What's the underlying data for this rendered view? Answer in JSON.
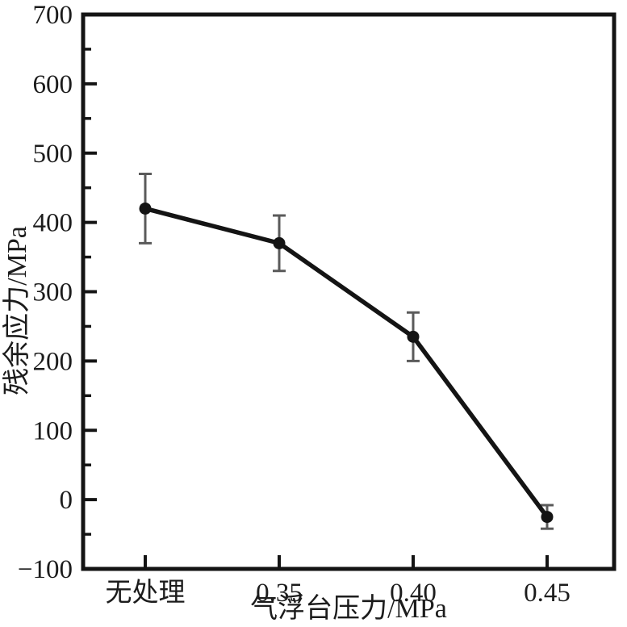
{
  "figure": {
    "background_color": "#ffffff",
    "axis_color": "#141414",
    "text_color": "#1c1c1c"
  },
  "chart_data": {
    "type": "line",
    "title": "",
    "xlabel": "气浮台压力/MPa",
    "ylabel": "残余应力/MPa",
    "categories": [
      "无处理",
      "0.35",
      "0.40",
      "0.45"
    ],
    "series": [
      {
        "name": "残余应力",
        "values": [
          420,
          370,
          235,
          -25
        ],
        "errors": [
          50,
          40,
          35,
          17
        ],
        "line_color": "#141414",
        "marker": "filled-circle",
        "marker_color": "#141414",
        "error_bar_color": "#5a5a5a"
      }
    ],
    "ylim": [
      -100,
      700
    ],
    "y_major_step": 100,
    "y_minor_step": 50,
    "y_tick_labels": [
      "700",
      "600",
      "500",
      "400",
      "300",
      "200",
      "100",
      "0",
      "−100"
    ],
    "grid": false,
    "legend_position": "none",
    "ticks_direction": "in"
  }
}
